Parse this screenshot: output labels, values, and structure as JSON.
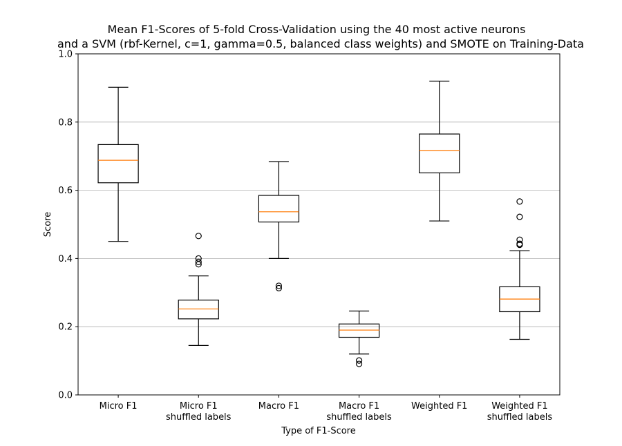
{
  "chart_data": {
    "type": "box",
    "title": [
      "Mean F1-Scores of 5-fold Cross-Validation using the 40 most active neurons",
      "and a SVM (rbf-Kernel, c=1, gamma=0.5, balanced class weights) and SMOTE on Training-Data"
    ],
    "xlabel": "Type of F1-Score",
    "ylabel": "Score",
    "ylim": [
      0.0,
      1.0
    ],
    "yticks": [
      "0.0",
      "0.2",
      "0.4",
      "0.6",
      "0.8",
      "1.0"
    ],
    "grid": "y",
    "categories": [
      [
        "Micro F1"
      ],
      [
        "Micro F1",
        "shuffled labels"
      ],
      [
        "Macro F1"
      ],
      [
        "Macro F1",
        "shuffled labels"
      ],
      [
        "Weighted F1"
      ],
      [
        "Weighted F1",
        "shuffled labels"
      ]
    ],
    "boxes": [
      {
        "whislo": 0.45,
        "q1": 0.622,
        "med": 0.688,
        "q3": 0.734,
        "whishi": 0.902,
        "fliers": []
      },
      {
        "whislo": 0.145,
        "q1": 0.223,
        "med": 0.252,
        "q3": 0.278,
        "whishi": 0.349,
        "fliers": [
          0.466,
          0.4,
          0.39,
          0.383
        ]
      },
      {
        "whislo": 0.4,
        "q1": 0.507,
        "med": 0.537,
        "q3": 0.585,
        "whishi": 0.684,
        "fliers": [
          0.32,
          0.313
        ]
      },
      {
        "whislo": 0.12,
        "q1": 0.169,
        "med": 0.19,
        "q3": 0.208,
        "whishi": 0.246,
        "fliers": [
          0.101,
          0.091
        ]
      },
      {
        "whislo": 0.51,
        "q1": 0.651,
        "med": 0.716,
        "q3": 0.765,
        "whishi": 0.92,
        "fliers": []
      },
      {
        "whislo": 0.163,
        "q1": 0.244,
        "med": 0.281,
        "q3": 0.317,
        "whishi": 0.423,
        "fliers": [
          0.567,
          0.522,
          0.455,
          0.443,
          0.44
        ]
      }
    ],
    "colors": {
      "box": "#000000",
      "median": "#ff7f0e",
      "grid": "#b0b0b0"
    }
  }
}
